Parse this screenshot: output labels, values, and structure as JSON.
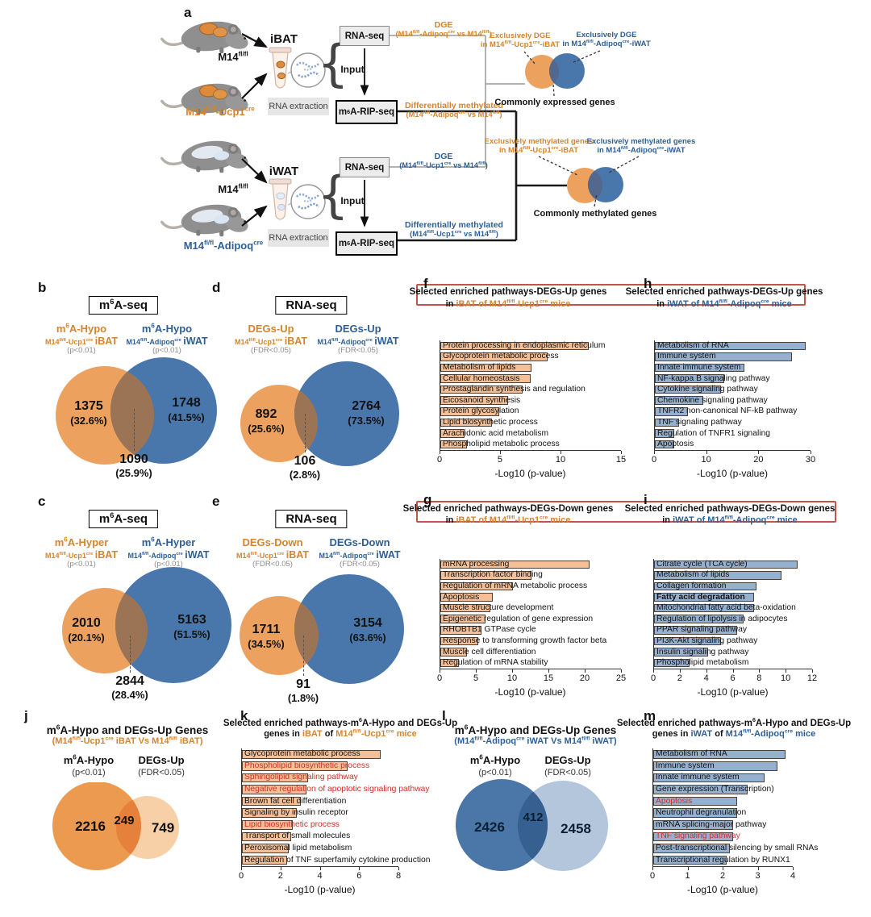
{
  "colors": {
    "orange-text": "#d5842e",
    "blue-text": "#2d5f95",
    "venn-orange": "#eca15e",
    "venn-blue": "#4a77ab",
    "venn-warm": "#9b7456",
    "venn-cool": "#53688c",
    "j-dark": "#eb9a50",
    "j-light": "#f8d0a8",
    "j-mid": "#e5813a",
    "l-dark": "#4a76a8",
    "l-light": "#b3c6dc",
    "l-mid": "#35608f",
    "bar-orange": "#f5c097",
    "bar-blue": "#96b0d0",
    "red": "#c9302c",
    "redbox": "#c4544a"
  },
  "panel_a": {
    "letter": "a",
    "mice_top": {
      "wt": "M14^{fl/fl}",
      "ko": "M14^{fl/fl}-Ucp1^{cre}"
    },
    "mice_bottom": {
      "wt": "M14^{fl/fl}",
      "ko": "M14^{fl/fl}-Adipoq^{cre}"
    },
    "tissue_top": "iBAT",
    "tissue_bottom": "iWAT",
    "rna_extraction": "RNA extraction",
    "rnaseq": "RNA-seq",
    "input": "Input",
    "ripseq": "m^{6}A-RIP-seq",
    "dge_top_1": "DGE",
    "dge_top_2": "(M14^{fl/fl}-Adipoq^{cre} vs M14^{fl/fl})",
    "meth_top_1": "Differentially methylated",
    "meth_top_2": "(M14^{fl/fl}-Adipoq^{cre} vs M14^{fl/fl})",
    "dge_bottom_1": "DGE",
    "dge_bottom_2": "(M14^{fl/fl}-Ucp1^{cre} vs M14^{fl/fl})",
    "meth_bottom_1": "Differentially methylated",
    "meth_bottom_2": "(M14^{fl/fl}-Ucp1^{cre} vs M14^{fl/fl})",
    "venn_expr": {
      "left1": "Exclusively DGE",
      "left2": "in M14^{fl/fl}-Ucp1^{cre}-iBAT",
      "right1": "Exclusively DGE",
      "right2": "in M14^{fl/fl}-Adipoq^{cre}-iWAT",
      "caption": "Commonly expressed genes"
    },
    "venn_meth": {
      "left1": "Exclusively methylated genes",
      "left2": "in M14^{fl/fl}-Ucp1^{cre}-iBAT",
      "right1": "Exclusively methylated genes",
      "right2": "in M14^{fl/fl}-Adipoq^{cre}-iWAT",
      "caption": "Commonly methylated genes"
    }
  },
  "venns": {
    "b": {
      "letter": "b",
      "box": "m^{6}A-seq",
      "left": {
        "l1": "m^{6}A-Hypo",
        "l2a": "M14^{fl/fl}-Ucp1^{cre}",
        "l2b": "iBAT",
        "l3": "(p<0.01)",
        "count": "1375",
        "pct": "(32.6%)"
      },
      "right": {
        "l1": "m^{6}A-Hypo",
        "l2a": "M14^{fl/fl}-Adipoq^{cre}",
        "l2b": "iWAT",
        "l3": "(p<0.01)",
        "count": "1748",
        "pct": "(41.5%)"
      },
      "inter": {
        "count": "1090",
        "pct": "(25.9%)"
      }
    },
    "c": {
      "letter": "c",
      "box": "m^{6}A-seq",
      "left": {
        "l1": "m^{6}A-Hyper",
        "l2a": "M14^{fl/fl}-Ucp1^{cre}",
        "l2b": "iBAT",
        "l3": "(p<0.01)",
        "count": "2010",
        "pct": "(20.1%)"
      },
      "right": {
        "l1": "m^{6}A-Hyper",
        "l2a": "M14^{fl/fl}-Adipoq^{cre}",
        "l2b": "iWAT",
        "l3": "(p<0.01)",
        "count": "5163",
        "pct": "(51.5%)"
      },
      "inter": {
        "count": "2844",
        "pct": "(28.4%)"
      }
    },
    "d": {
      "letter": "d",
      "box": "RNA-seq",
      "left": {
        "l1": "DEGs-Up",
        "l2a": "M14^{fl/fl}-Ucp1^{cre}",
        "l2b": "iBAT",
        "l3": "(FDR<0.05)",
        "count": "892",
        "pct": "(25.6%)"
      },
      "right": {
        "l1": "DEGs-Up",
        "l2a": "M14^{fl/fl}-Adipoq^{cre}",
        "l2b": "iWAT",
        "l3": "(FDR<0.05)",
        "count": "2764",
        "pct": "(73.5%)"
      },
      "inter": {
        "count": "106",
        "pct": "(2.8%)"
      }
    },
    "e": {
      "letter": "e",
      "box": "RNA-seq",
      "left": {
        "l1": "DEGs-Down",
        "l2a": "M14^{fl/fl}-Ucp1^{cre}",
        "l2b": "iBAT",
        "l3": "(FDR<0.05)",
        "count": "1711",
        "pct": "(34.5%)"
      },
      "right": {
        "l1": "DEGs-Down",
        "l2a": "M14^{fl/fl}-Adipoq^{cre}",
        "l2b": "iWAT",
        "l3": "(FDR<0.05)",
        "count": "3154",
        "pct": "(63.6%)"
      },
      "inter": {
        "count": "91",
        "pct": "(1.8%)"
      }
    },
    "j": {
      "letter": "j",
      "title": "m^{6}A-Hypo and DEGs-Up Genes",
      "subtitle": "(M14^{fl/fl}-Ucp1^{cre} iBAT Vs M14^{fl/fl} iBAT)",
      "left": {
        "l1": "m^{6}A-Hypo",
        "l3": "(p<0.01)",
        "count": "2216"
      },
      "right": {
        "l1": "DEGs-Up",
        "l3": "(FDR<0.05)",
        "count": "749"
      },
      "inter": {
        "count": "249"
      }
    },
    "l": {
      "letter": "l",
      "title": "m^{6}A-Hypo and DEGs-Up Genes",
      "subtitle": "(M14^{fl/fl}-Adipoq^{cre} iWAT Vs M14^{fl/fl} iWAT)",
      "left": {
        "l1": "m^{6}A-Hypo",
        "l3": "(p<0.01)",
        "count": "2426"
      },
      "right": {
        "l1": "DEGs-Up",
        "l3": "(FDR<0.05)",
        "count": "2458"
      },
      "inter": {
        "count": "412"
      }
    }
  },
  "chart_data": [
    {
      "id": "f",
      "letter": "f",
      "type": "bar",
      "color": "orange",
      "title1": "Selected enriched pathways-DEGs-Up genes",
      "title2": [
        {
          "t": "in "
        },
        {
          "t": "iBAT of M14^{fl/fl}-Ucp1^{cre} mice",
          "a": true
        }
      ],
      "labels": [
        "Protein processing in endoplasmic reticulum",
        "Glycoprotein metabolic process",
        "Metabolism of lipids",
        "Cellular homeostasis",
        "Prostaglandin synthesis and regulation",
        "Eicosanoid synthesis",
        "Protein glycosylation",
        "Lipid biosynthetic process",
        "Arachidonic acid metabolism",
        "Phospholipid metabolic process"
      ],
      "values": [
        12.3,
        8.9,
        7.6,
        7.5,
        6.8,
        5.6,
        4.9,
        4.3,
        2.0,
        2.2
      ],
      "xmax": 15,
      "ticks": [
        0,
        5,
        10,
        15
      ],
      "xlabel": "-Log10 (p-value)"
    },
    {
      "id": "h",
      "letter": "h",
      "type": "bar",
      "color": "blue",
      "title1": "Selected enriched pathways-DEGs-Up genes",
      "title2": [
        {
          "t": "in "
        },
        {
          "t": "iWAT of M14^{fl/fl}-Adipoq^{cre} mice",
          "a": true
        }
      ],
      "labels": [
        "Metabolism of RNA",
        "Immune system",
        "Innate immune system",
        "NF-kappa B signaling pathway",
        "Cytokine signaling pathway",
        "Chemokine signaling pathway",
        "TNFR2 non-canonical NF-kB pathway",
        "TNF signaling pathway",
        "Regulation of TNFR1 signaling",
        "Apoptosis"
      ],
      "values": [
        29.0,
        26.4,
        17.3,
        13.3,
        12.8,
        9.3,
        6.3,
        4.6,
        3.7,
        3.7
      ],
      "xmax": 30,
      "ticks": [
        0,
        10,
        20,
        30
      ],
      "xlabel": "-Log10 (p-value)"
    },
    {
      "id": "g",
      "letter": "g",
      "type": "bar",
      "color": "orange",
      "title1": "Selected enriched pathways-DEGs-Down genes",
      "title2": [
        {
          "t": "in "
        },
        {
          "t": "iBAT of M14^{fl/fl}-Ucp1^{cre} mice",
          "a": true
        }
      ],
      "labels": [
        "mRNA processing",
        "Transcription factor binding",
        "Regulation of mRNA metabolic process",
        "Apoptosis",
        "Muscle structure development",
        "Epigenetic regulation of gene expression",
        "RHOBTB1 GTPase cycle",
        "Response to transforming growth factor beta",
        "Muscle cell differentiation",
        "Regulation of mRNA stability"
      ],
      "values": [
        20.7,
        12.6,
        10.0,
        7.2,
        6.9,
        6.3,
        5.7,
        5.3,
        3.7,
        2.6
      ],
      "xmax": 25,
      "ticks": [
        0,
        5,
        10,
        15,
        20,
        25
      ],
      "xlabel": "-Log10 (p-value)"
    },
    {
      "id": "i",
      "letter": "i",
      "type": "bar",
      "color": "blue",
      "title1": "Selected enriched pathways-DEGs-Down genes",
      "title2": [
        {
          "t": "in "
        },
        {
          "t": "iWAT of M14^{fl/fl}-Adipoq^{cre} mice",
          "a": true
        }
      ],
      "labels": [
        "Citrate cycle (TCA cycle)",
        "Metabolism of lipids",
        "Collagen formation",
        "Fatty acid degradation",
        "Mitochondrial fatty acid beta-oxidation",
        "Regulation of lipolysis in adipocytes",
        "PPAR signaling pathway",
        "PI3K-Akt signaling pathway",
        "Insulin signaling pathway",
        "Phospholipid metabolism"
      ],
      "values": [
        10.9,
        9.7,
        7.8,
        7.6,
        7.6,
        6.8,
        6.3,
        5.1,
        4.1,
        2.7
      ],
      "bold": [
        3
      ],
      "xmax": 12,
      "ticks": [
        0,
        2,
        4,
        6,
        8,
        10,
        12
      ],
      "xlabel": "-Log10 (p-value)"
    },
    {
      "id": "k",
      "letter": "k",
      "type": "bar",
      "color": "orange",
      "title1": "Selected enriched pathways-m^{6}A-Hypo and DEGs-Up",
      "title2": [
        {
          "t": "genes in "
        },
        {
          "t": "iBAT",
          "a": true
        },
        {
          "t": " of "
        },
        {
          "t": "M14^{fl/fl}-Ucp1^{cre} mice",
          "a": true
        }
      ],
      "labels": [
        "Glycoprotein metabolic process",
        "Phospholipid biosynthetic process",
        "Sphingolipid signaling pathway",
        "Negative regulation of apoptotic signaling pathway",
        "Brown fat cell differentiation",
        "Signaling by insulin receptor",
        "Lipid biosynthetic process",
        "Transport of small molecules",
        "Peroxisomal lipid metabolism",
        "Regulation of TNF superfamily cytokine production"
      ],
      "values": [
        7.1,
        5.4,
        3.4,
        3.3,
        3.0,
        2.8,
        2.6,
        2.5,
        2.4,
        2.3
      ],
      "red": [
        1,
        2,
        3,
        6
      ],
      "xmax": 8,
      "ticks": [
        0,
        2,
        4,
        6,
        8
      ],
      "xlabel": "-Log10 (p-value)"
    },
    {
      "id": "m",
      "letter": "m",
      "type": "bar",
      "color": "blue",
      "title1": "Selected enriched pathways-m^{6}A-Hypo and DEGs-Up",
      "title2": [
        {
          "t": "genes in "
        },
        {
          "t": "iWAT",
          "a": true
        },
        {
          "t": " of "
        },
        {
          "t": "M14^{fl/fl}-Adipoq^{cre} mice",
          "a": true
        }
      ],
      "labels": [
        "Metabolism of RNA",
        "Immune system",
        "Innate immune system",
        "Gene expression (Transcription)",
        "Apoptosis",
        "Neutrophil degranulation",
        "mRNA splicing-major pathway",
        "TNF signaling pathway",
        "Post-transcriptional silencing by small RNAs",
        "Transcriptional regulation by RUNX1"
      ],
      "values": [
        3.8,
        3.55,
        3.2,
        2.7,
        2.4,
        2.4,
        2.3,
        2.3,
        2.2,
        2.1
      ],
      "red": [
        4,
        7
      ],
      "xmax": 4,
      "ticks": [
        0,
        1,
        2,
        3,
        4
      ],
      "xlabel": "-Log10 (p-value)"
    }
  ]
}
